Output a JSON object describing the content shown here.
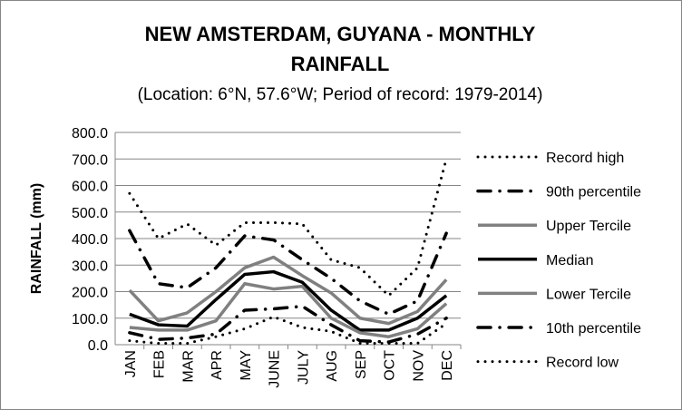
{
  "chart_data": {
    "type": "line",
    "title": "NEW AMSTERDAM, GUYANA - MONTHLY RAINFALL",
    "title_line1": "NEW AMSTERDAM, GUYANA - MONTHLY",
    "title_line2": "RAINFALL",
    "subtitle": "(Location: 6°N, 57.6°W; Period of record: 1979-2014)",
    "xlabel": "",
    "ylabel": "RAINFALL (mm)",
    "ylim": [
      0,
      800
    ],
    "yticks": [
      "0.0",
      "100.0",
      "200.0",
      "300.0",
      "400.0",
      "500.0",
      "600.0",
      "700.0",
      "800.0"
    ],
    "grid": true,
    "legend_position": "right",
    "categories": [
      "JAN",
      "FEB",
      "MAR",
      "APR",
      "MAY",
      "JUNE",
      "JULY",
      "AUG",
      "SEP",
      "OCT",
      "NOV",
      "DEC"
    ],
    "series": [
      {
        "name": "Record high",
        "style": "dotted",
        "color": "#000000",
        "values": [
          570,
          400,
          455,
          375,
          460,
          460,
          455,
          320,
          290,
          185,
          290,
          700
        ]
      },
      {
        "name": "90th percentile",
        "style": "dashdot",
        "color": "#000000",
        "values": [
          430,
          230,
          215,
          290,
          410,
          395,
          320,
          250,
          165,
          115,
          165,
          420
        ]
      },
      {
        "name": "Upper Tercile",
        "style": "solid",
        "color": "#808080",
        "values": [
          205,
          90,
          120,
          200,
          290,
          330,
          260,
          195,
          100,
          80,
          125,
          245
        ]
      },
      {
        "name": "Median",
        "style": "solid",
        "color": "#000000",
        "values": [
          115,
          75,
          70,
          170,
          265,
          275,
          235,
          130,
          55,
          55,
          100,
          185
        ]
      },
      {
        "name": "Lower Tercile",
        "style": "solid",
        "color": "#808080",
        "values": [
          65,
          55,
          55,
          90,
          230,
          210,
          220,
          100,
          45,
          30,
          60,
          155
        ]
      },
      {
        "name": "10th percentile",
        "style": "dashdot",
        "color": "#000000",
        "values": [
          45,
          20,
          25,
          40,
          130,
          135,
          145,
          75,
          15,
          10,
          40,
          100
        ]
      },
      {
        "name": "Record low",
        "style": "dotted",
        "color": "#000000",
        "values": [
          15,
          5,
          5,
          30,
          60,
          105,
          65,
          50,
          5,
          5,
          5,
          80
        ]
      }
    ]
  }
}
